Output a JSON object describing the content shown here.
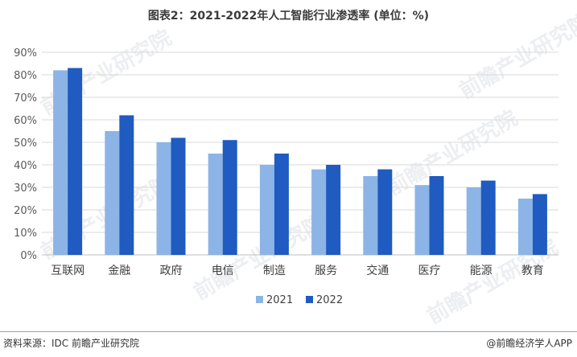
{
  "title": "图表2：2021-2022年人工智能行业渗透率 (单位：%)",
  "footer": {
    "source": "资料来源：IDC 前瞻产业研究院",
    "brand": "@前瞻经济学人APP"
  },
  "watermark": "前瞻产业研究院",
  "colors": {
    "series_2021": "#8db4e6",
    "series_2022": "#1f5bc0",
    "grid": "#d9d9d9",
    "footer_line": "#7fa7d4"
  },
  "chart_data": {
    "type": "bar",
    "categories": [
      "互联网",
      "金融",
      "政府",
      "电信",
      "制造",
      "服务",
      "交通",
      "医疗",
      "能源",
      "教育"
    ],
    "series": [
      {
        "name": "2021",
        "values": [
          82,
          55,
          50,
          45,
          40,
          38,
          35,
          31,
          30,
          25
        ]
      },
      {
        "name": "2022",
        "values": [
          83,
          62,
          52,
          51,
          45,
          40,
          38,
          35,
          33,
          27
        ]
      }
    ],
    "ylim": [
      0,
      90
    ],
    "yticks": [
      "0%",
      "10%",
      "20%",
      "30%",
      "40%",
      "50%",
      "60%",
      "70%",
      "80%",
      "90%"
    ],
    "xlabel": "",
    "ylabel": "",
    "grid": true,
    "legend": "bottom-center"
  }
}
